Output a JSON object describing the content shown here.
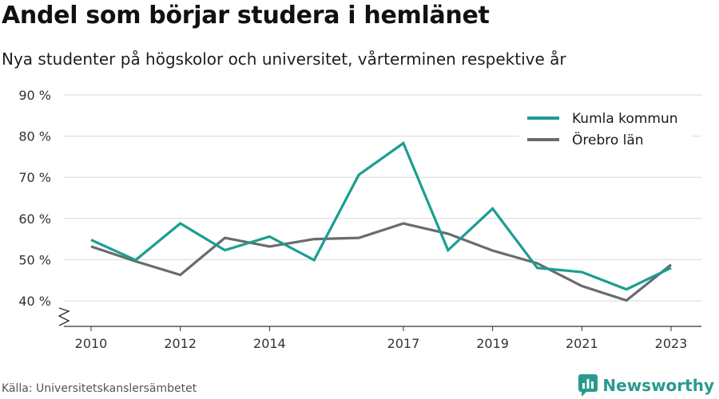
{
  "title": "Andel som börjar studera i hemlänet",
  "subtitle": "Nya studenter på högskolor och universitet, vårterminen respektive år",
  "source": "Källa: Universitetskanslersämbetet",
  "brand": {
    "name": "Newsworthy",
    "color": "#2a9a8e",
    "icon": "newsworthy-logo-icon"
  },
  "chart_data": {
    "type": "line",
    "x": [
      2010,
      2011,
      2012,
      2013,
      2014,
      2015,
      2016,
      2017,
      2018,
      2019,
      2020,
      2021,
      2022,
      2023
    ],
    "x_tick_labels": [
      "2010",
      "2012",
      "2014",
      "2017",
      "2019",
      "2021",
      "2023"
    ],
    "y_tick_labels": [
      "90 %",
      "80 %",
      "70 %",
      "60 %",
      "50 %",
      "40 %"
    ],
    "ylim": [
      40,
      90
    ],
    "y_axis_break": true,
    "grid": true,
    "legend_position": "top-right",
    "series": [
      {
        "name": "Kumla kommun",
        "color": "#1a9e91",
        "values": [
          54.8,
          49.9,
          58.8,
          52.3,
          55.6,
          49.9,
          70.6,
          78.3,
          52.3,
          62.4,
          48.0,
          47.0,
          42.8,
          48.0
        ]
      },
      {
        "name": "Örebro län",
        "color": "#6b6a6f",
        "values": [
          53.2,
          49.6,
          46.3,
          55.3,
          53.2,
          55.0,
          55.3,
          58.8,
          56.3,
          52.2,
          49.1,
          43.6,
          40.1,
          48.8
        ]
      }
    ]
  }
}
